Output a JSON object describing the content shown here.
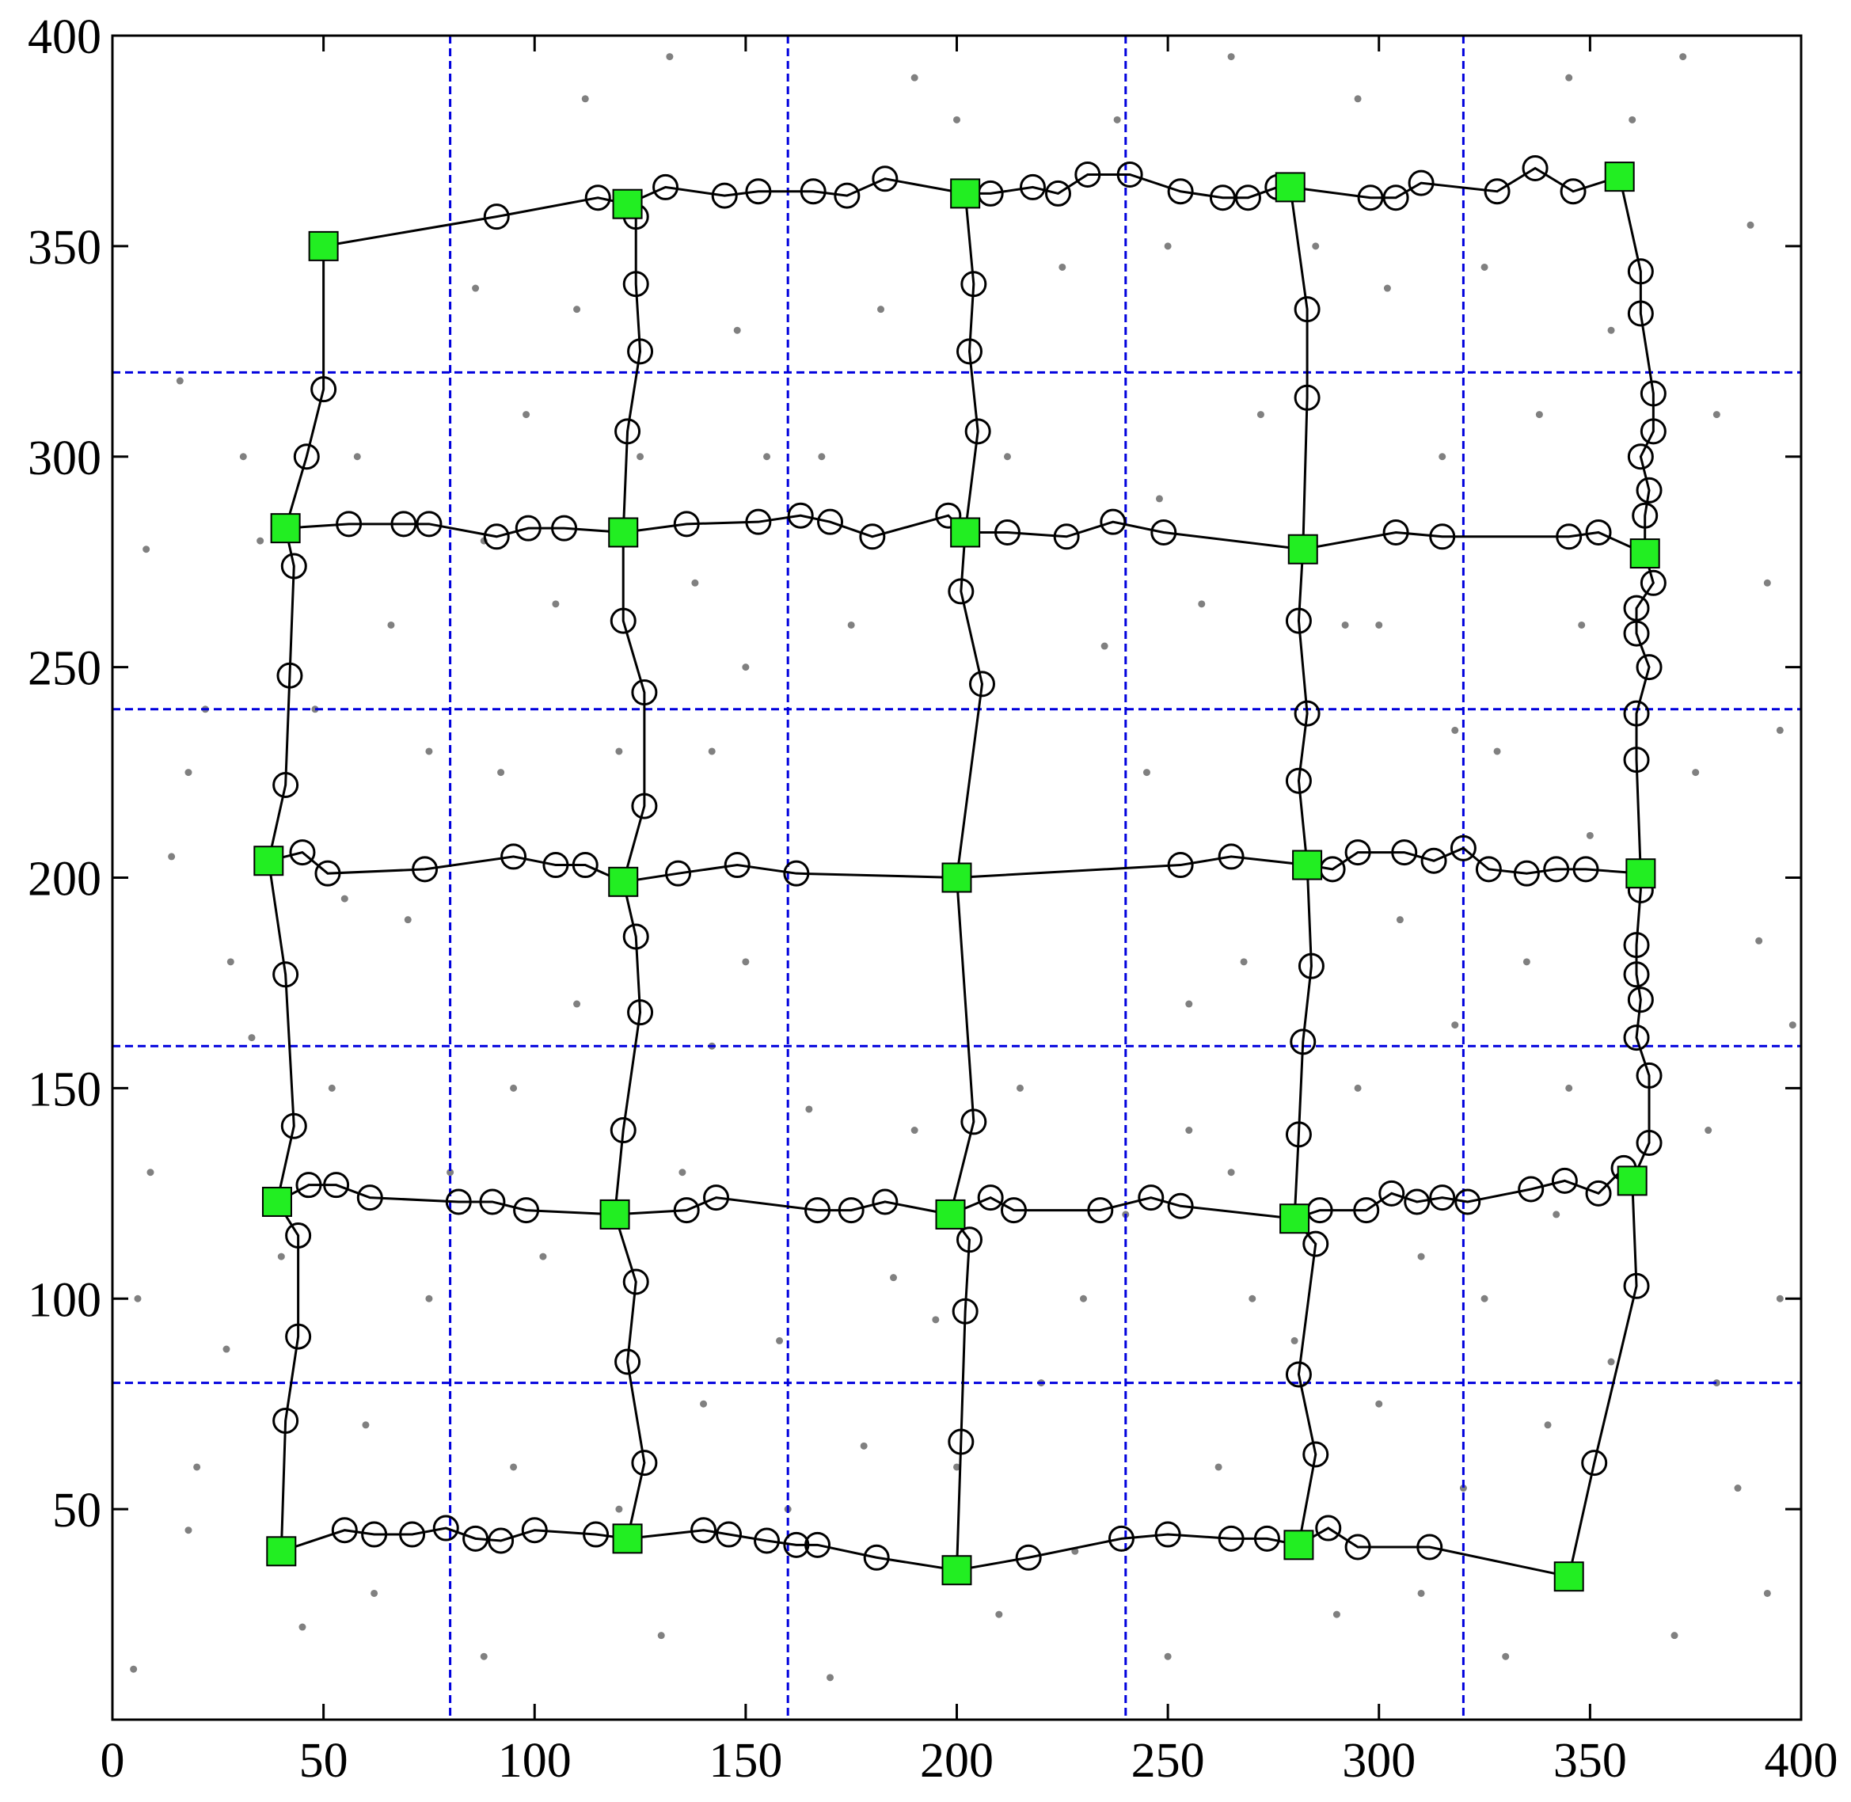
{
  "chart_data": {
    "type": "scatter",
    "xlim": [
      0,
      400
    ],
    "ylim": [
      0,
      400
    ],
    "xticks": [
      0,
      50,
      100,
      150,
      200,
      250,
      300,
      350,
      400
    ],
    "yticks": [
      50,
      100,
      150,
      200,
      250,
      300,
      350,
      400
    ],
    "grid_x": [
      80,
      160,
      240,
      320
    ],
    "grid_y": [
      80,
      160,
      240,
      320
    ],
    "grid_color": "#0000dd",
    "background_points": {
      "color": "#808080",
      "x": [
        5,
        18,
        27,
        9,
        33,
        14,
        22,
        8,
        31,
        16,
        45,
        60,
        52,
        70,
        66,
        58,
        75,
        88,
        95,
        102,
        110,
        92,
        105,
        98,
        86,
        112,
        130,
        140,
        135,
        150,
        142,
        138,
        148,
        132,
        155,
        170,
        178,
        185,
        165,
        190,
        175,
        168,
        182,
        190,
        210,
        220,
        230,
        215,
        235,
        212,
        225,
        238,
        250,
        262,
        270,
        255,
        268,
        245,
        258,
        272,
        250,
        265,
        290,
        300,
        310,
        295,
        305,
        318,
        292,
        315,
        302,
        295,
        330,
        340,
        325,
        345,
        335,
        328,
        348,
        338,
        325,
        345,
        370,
        385,
        395,
        378,
        390,
        375,
        392,
        380,
        388,
        372,
        20,
        40,
        62,
        80,
        120,
        158,
        200,
        240,
        280,
        320,
        355,
        380,
        28,
        48,
        120,
        150,
        255,
        300,
        350,
        395,
        110,
        200,
        285,
        360,
        6,
        35,
        75,
        95,
        125,
        160,
        195,
        228,
        265,
        310,
        342,
        398,
        18,
        55,
        88,
        142,
        248,
        318,
        355,
        392
      ],
      "y": [
        12,
        45,
        88,
        130,
        162,
        205,
        240,
        278,
        300,
        318,
        22,
        70,
        150,
        190,
        260,
        300,
        230,
        15,
        60,
        110,
        170,
        225,
        265,
        310,
        340,
        385,
        20,
        75,
        130,
        180,
        230,
        270,
        330,
        395,
        300,
        10,
        65,
        105,
        145,
        140,
        260,
        300,
        335,
        390,
        25,
        80,
        100,
        150,
        255,
        300,
        345,
        380,
        15,
        60,
        100,
        140,
        180,
        225,
        265,
        310,
        350,
        395,
        25,
        75,
        110,
        150,
        190,
        235,
        260,
        300,
        340,
        385,
        15,
        70,
        100,
        150,
        180,
        230,
        260,
        310,
        345,
        390,
        20,
        55,
        100,
        140,
        185,
        225,
        270,
        310,
        355,
        395,
        60,
        110,
        30,
        130,
        50,
        90,
        60,
        120,
        90,
        55,
        85,
        80,
        180,
        240,
        230,
        250,
        170,
        260,
        210,
        235,
        335,
        380,
        350,
        380,
        100,
        280,
        100,
        150,
        300,
        50,
        95,
        40,
        130,
        30,
        120,
        165,
        225,
        195,
        280,
        160,
        290,
        165,
        330,
        30
      ]
    },
    "lines": [
      {
        "x": [
          50,
          91,
          115,
          122,
          131,
          145,
          153,
          166,
          174,
          183,
          202,
          208,
          218,
          224,
          231,
          241,
          253,
          263,
          269,
          276,
          279,
          298,
          304,
          310,
          328,
          337,
          346,
          357
        ],
        "y": [
          350,
          357,
          361.5,
          360,
          364,
          362,
          363,
          363,
          362,
          366,
          362.5,
          362.5,
          364,
          362.5,
          367,
          367,
          363,
          361.5,
          361.5,
          364,
          364,
          361.5,
          361.5,
          365,
          363,
          368.5,
          363,
          366.5
        ]
      },
      {
        "x": [
          41,
          56,
          69,
          75,
          91,
          98.5,
          107,
          121,
          136,
          153,
          163,
          170,
          180,
          198,
          202,
          212,
          226,
          237,
          249,
          282,
          304,
          315,
          345,
          352,
          363
        ],
        "y": [
          283,
          284,
          284,
          284,
          281,
          283,
          283,
          282,
          284,
          284.5,
          286,
          284.5,
          281,
          286,
          282,
          282,
          281,
          284.5,
          282,
          278,
          282,
          281,
          281,
          282,
          277
        ]
      },
      {
        "x": [
          37,
          45,
          51,
          74,
          95,
          105,
          112,
          121,
          134,
          148,
          162,
          200,
          253,
          265,
          283,
          289,
          295,
          306,
          313,
          320,
          326,
          335,
          342,
          349,
          362
        ],
        "y": [
          204,
          206,
          201,
          202,
          205,
          203,
          203,
          199,
          201,
          203,
          201,
          200,
          203,
          205,
          203,
          202,
          206,
          206,
          204,
          207,
          202,
          201,
          202,
          202,
          201
        ]
      },
      {
        "x": [
          39,
          46.5,
          53,
          61,
          82,
          90,
          98,
          119,
          136,
          143,
          167,
          175,
          183,
          198.5,
          208,
          213.5,
          234,
          246,
          253,
          280,
          286,
          297,
          303,
          309,
          315,
          321,
          336,
          344,
          352,
          358,
          360
        ],
        "y": [
          123,
          127,
          127,
          124,
          123,
          123,
          121,
          120,
          121,
          124,
          121,
          121,
          123,
          120,
          124,
          121,
          121,
          124,
          122,
          119,
          121,
          121,
          125,
          123,
          124,
          123,
          126,
          128,
          125,
          131,
          128
        ]
      },
      {
        "x": [
          40,
          55,
          62,
          71,
          79,
          86,
          92,
          100,
          114.5,
          122,
          140,
          146,
          155,
          162,
          167,
          181,
          200,
          217,
          239,
          250,
          265,
          273.5,
          281,
          288,
          295,
          312,
          345
        ],
        "y": [
          40,
          45,
          44,
          44,
          45.5,
          43,
          42.5,
          45,
          44,
          43,
          45,
          44,
          42.5,
          41.5,
          41.5,
          38.5,
          35.5,
          38.5,
          43,
          44,
          43,
          43,
          41.5,
          45.5,
          41,
          41,
          34
        ]
      },
      {
        "x": [
          50,
          50,
          46,
          41,
          43,
          42,
          41,
          37,
          41,
          43,
          39,
          44,
          44,
          41,
          40
        ],
        "y": [
          350,
          316,
          300,
          283,
          274,
          248,
          222,
          204,
          177,
          141,
          123,
          115,
          91,
          71,
          40
        ]
      },
      {
        "x": [
          122,
          124,
          124,
          125,
          122,
          121,
          121,
          126,
          126,
          121,
          124,
          125,
          121,
          119,
          124,
          122,
          126,
          122
        ],
        "y": [
          360,
          357,
          341,
          325,
          306,
          282,
          261,
          244,
          217,
          199,
          186,
          168,
          140,
          120,
          104,
          85,
          61,
          43
        ]
      },
      {
        "x": [
          202,
          204,
          203,
          205,
          202,
          201,
          206,
          200,
          204,
          198.5,
          203,
          202,
          201,
          200
        ],
        "y": [
          362.5,
          341,
          325,
          306,
          282,
          268,
          246,
          200,
          142,
          120,
          114,
          97,
          66,
          35.5
        ]
      },
      {
        "x": [
          279,
          283,
          283,
          282,
          281,
          283,
          281,
          283,
          284,
          282,
          281,
          280,
          285,
          281,
          285,
          281
        ],
        "y": [
          364,
          335,
          314,
          278,
          261,
          239,
          223,
          203,
          179,
          161,
          139,
          119,
          113,
          82,
          63,
          41.5
        ]
      },
      {
        "x": [
          357,
          362,
          362,
          365,
          365,
          362,
          364,
          363,
          363,
          365,
          361,
          361,
          364,
          361,
          361,
          362,
          362,
          361,
          361,
          362,
          361,
          364,
          364,
          360,
          361,
          351,
          345
        ],
        "y": [
          366.5,
          344,
          334,
          315,
          306,
          300,
          292,
          286,
          277,
          270,
          264,
          258,
          250,
          239,
          228,
          201,
          197,
          184,
          177,
          171,
          162,
          153,
          137,
          128,
          103,
          61,
          34
        ]
      }
    ],
    "line_color": "#000000",
    "squares": {
      "color": "#22ee22",
      "x": [
        50,
        122,
        202,
        279,
        357,
        41,
        121,
        202,
        282,
        363,
        37,
        121,
        200,
        283,
        362,
        39,
        119,
        198.5,
        280,
        360,
        40,
        122,
        200,
        281,
        345
      ],
      "y": [
        350,
        360,
        362.5,
        364,
        366.5,
        283,
        282,
        282,
        278,
        277,
        204,
        199,
        200,
        203,
        201,
        123,
        120,
        120,
        119,
        128,
        40,
        43,
        35.5,
        41.5,
        34
      ]
    }
  }
}
